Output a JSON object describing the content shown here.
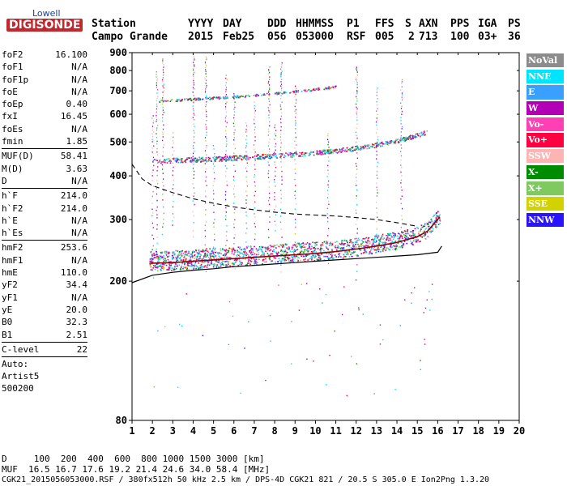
{
  "logo": {
    "line1": "Lowell",
    "line2": "DIGISONDE"
  },
  "header": {
    "labels": [
      "Station",
      "YYYY",
      "DAY",
      "DDD",
      "HHMMSS",
      "P1",
      "FFS",
      "S",
      "AXN",
      "PPS",
      "IGA",
      "PS"
    ],
    "values": [
      "Campo Grande",
      "2015",
      "Feb25",
      "056",
      "053000",
      "RSF",
      "005",
      "2",
      "713",
      "100",
      "03+",
      "36"
    ]
  },
  "params": [
    [
      {
        "k": "foF2",
        "v": "16.100"
      },
      {
        "k": "foF1",
        "v": "N/A"
      },
      {
        "k": "foF1p",
        "v": "N/A"
      },
      {
        "k": "foE",
        "v": "N/A"
      },
      {
        "k": "foEp",
        "v": "0.40"
      },
      {
        "k": "fxI",
        "v": "16.45"
      },
      {
        "k": "foEs",
        "v": "N/A"
      },
      {
        "k": "fmin",
        "v": "1.85"
      }
    ],
    [
      {
        "k": "MUF(D)",
        "v": "58.41"
      },
      {
        "k": "M(D)",
        "v": "3.63"
      },
      {
        "k": "D",
        "v": "N/A"
      }
    ],
    [
      {
        "k": "h`F",
        "v": "214.0"
      },
      {
        "k": "h`F2",
        "v": "214.0"
      },
      {
        "k": "h`E",
        "v": "N/A"
      },
      {
        "k": "h`Es",
        "v": "N/A"
      }
    ],
    [
      {
        "k": "hmF2",
        "v": "253.6"
      },
      {
        "k": "hmF1",
        "v": "N/A"
      },
      {
        "k": "hmE",
        "v": "110.0"
      },
      {
        "k": "yF2",
        "v": "34.4"
      },
      {
        "k": "yF1",
        "v": "N/A"
      },
      {
        "k": "yE",
        "v": "20.0"
      },
      {
        "k": "B0",
        "v": "32.3"
      },
      {
        "k": "B1",
        "v": "2.51"
      }
    ],
    [
      {
        "k": "C-level",
        "v": "22"
      }
    ]
  ],
  "autoscaling": {
    "l1": "Auto:",
    "l2": "Artist5",
    "l3": "500200"
  },
  "legend": [
    {
      "label": "NoVal",
      "color": "#8c8c8c"
    },
    {
      "label": "NNE",
      "color": "#00e5ff"
    },
    {
      "label": "E",
      "color": "#3aa0ff"
    },
    {
      "label": "W",
      "color": "#b400b4"
    },
    {
      "label": "Vo-",
      "color": "#ff40b4"
    },
    {
      "label": "Vo+",
      "color": "#ff0040"
    },
    {
      "label": "SSW",
      "color": "#ffb4b4"
    },
    {
      "label": "X-",
      "color": "#008c00"
    },
    {
      "label": "X+",
      "color": "#80c860"
    },
    {
      "label": "SSE",
      "color": "#d2d200"
    },
    {
      "label": "NNW",
      "color": "#2a14ff"
    }
  ],
  "footer": {
    "d_row": "D     100  200  400  600  800 1000 1500 3000 [km]",
    "muf_row": "MUF  16.5 16.7 17.6 19.2 21.4 24.6 34.0 58.4 [MHz]",
    "file_row": "CGK21_2015056053000.RSF / 380fx512h 50 kHz 2.5 km / DPS-4D CGK21 821 / 20.5 S 305.0 E Ion2Png 1.3.20"
  },
  "chart_data": {
    "type": "scatter",
    "xlim": [
      1,
      20
    ],
    "ylim": [
      80,
      900
    ],
    "xticks": [
      1,
      2,
      3,
      4,
      5,
      6,
      7,
      8,
      9,
      10,
      11,
      12,
      13,
      14,
      15,
      16,
      17,
      18,
      19,
      20
    ],
    "yticks": [
      80,
      200,
      300,
      400,
      500,
      600,
      700,
      800,
      900
    ],
    "grid": false,
    "legend_position": "right",
    "traces": [
      {
        "name": "F2 trace",
        "color": "#ff0040",
        "x": [
          1.85,
          3,
          4,
          5,
          6,
          7,
          8,
          9,
          10,
          11,
          12,
          13,
          14,
          15,
          15.5,
          16.1
        ],
        "y": [
          225,
          226,
          228,
          230,
          232,
          234,
          236,
          238,
          240,
          243,
          247,
          252,
          258,
          268,
          278,
          305
        ]
      },
      {
        "name": "second hop",
        "color": "#ff0040",
        "x": [
          2,
          3,
          4,
          5,
          6,
          7,
          8,
          9,
          10,
          11,
          12,
          13,
          14,
          15,
          15.5
        ],
        "y": [
          440,
          442,
          444,
          446,
          449,
          452,
          456,
          460,
          465,
          471,
          479,
          489,
          503,
          522,
          535
        ]
      },
      {
        "name": "third hop",
        "color": "#ff40b4",
        "x": [
          2.3,
          3,
          4,
          5,
          6,
          7,
          8,
          9,
          10,
          11
        ],
        "y": [
          655,
          658,
          663,
          668,
          673,
          680,
          688,
          697,
          708,
          720
        ]
      }
    ],
    "profile": {
      "x": [
        1,
        2,
        3,
        4,
        5,
        6,
        7,
        8,
        9,
        10,
        11,
        12,
        13,
        14,
        15,
        16,
        16.2
      ],
      "y": [
        198,
        208,
        212,
        215,
        217,
        220,
        222,
        224,
        226,
        228,
        230,
        232,
        234,
        236,
        238,
        242,
        252
      ]
    },
    "virtual_height_model": {
      "x": [
        1,
        1.5,
        2,
        3,
        4,
        5,
        6,
        7,
        8,
        9,
        10,
        11,
        12,
        13,
        14,
        15
      ],
      "y": [
        432,
        392,
        375,
        358,
        344,
        334,
        326,
        320,
        315,
        311,
        309,
        307,
        304,
        300,
        294,
        287
      ]
    }
  }
}
